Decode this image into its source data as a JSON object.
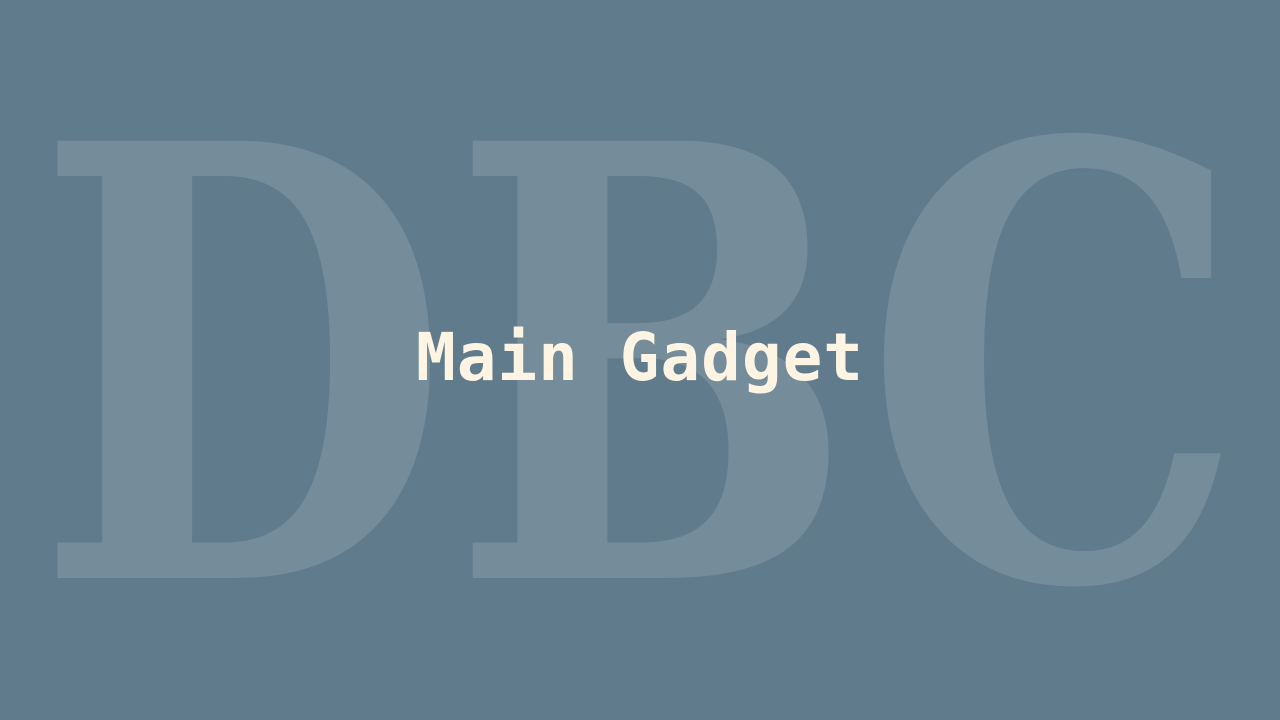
{
  "slide": {
    "title": "Main Gadget",
    "watermark_text": "DBC"
  },
  "colors": {
    "background": "#5f7b8c",
    "watermark": "#758c9a",
    "title": "#fdf4e3"
  }
}
